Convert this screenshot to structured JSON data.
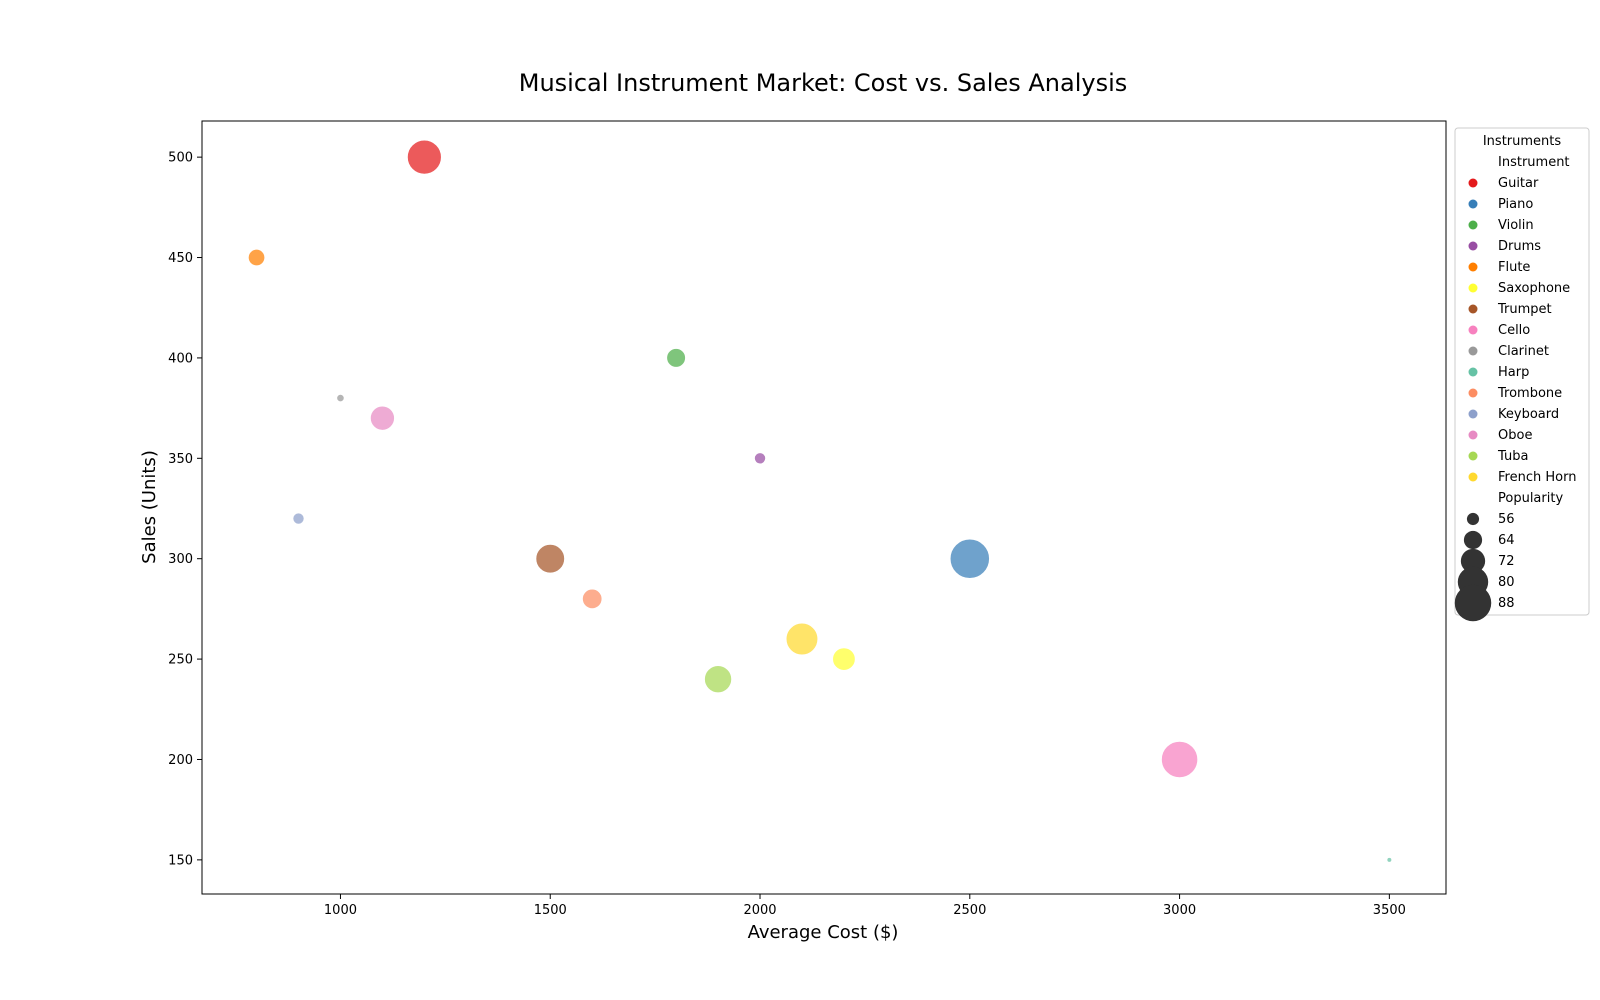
{
  "chart_data": {
    "type": "scatter",
    "title": "Musical Instrument Market: Cost vs. Sales Analysis",
    "xlabel": "Average Cost ($)",
    "ylabel": "Sales (Units)",
    "xlim": [
      670,
      3635
    ],
    "ylim": [
      133,
      518
    ],
    "xticks": [
      1000,
      1500,
      2000,
      2500,
      3000,
      3500
    ],
    "yticks": [
      150,
      200,
      250,
      300,
      350,
      400,
      450,
      500
    ],
    "grid": false,
    "legend": {
      "title": "Instruments",
      "placement": "outside-right",
      "hue_title": "Instrument",
      "size_title": "Popularity",
      "size_entries": [
        56,
        64,
        72,
        80,
        88
      ]
    },
    "series": [
      {
        "name": "Guitar",
        "color": "#e41a1c",
        "x": 1200,
        "y": 500,
        "size": 85
      },
      {
        "name": "Piano",
        "color": "#377eb8",
        "x": 2500,
        "y": 300,
        "size": 92
      },
      {
        "name": "Violin",
        "color": "#4daf4a",
        "x": 1800,
        "y": 400,
        "size": 65
      },
      {
        "name": "Drums",
        "color": "#984ea3",
        "x": 2000,
        "y": 350,
        "size": 55
      },
      {
        "name": "Flute",
        "color": "#ff7f00",
        "x": 800,
        "y": 450,
        "size": 62
      },
      {
        "name": "Saxophone",
        "color": "#ffff33",
        "x": 2200,
        "y": 250,
        "size": 70
      },
      {
        "name": "Trumpet",
        "color": "#a65628",
        "x": 1500,
        "y": 300,
        "size": 78
      },
      {
        "name": "Cello",
        "color": "#f781bf",
        "x": 3000,
        "y": 200,
        "size": 88
      },
      {
        "name": "Clarinet",
        "color": "#999999",
        "x": 1000,
        "y": 380,
        "size": 50
      },
      {
        "name": "Harp",
        "color": "#66c2a5",
        "x": 3500,
        "y": 150,
        "size": 40
      },
      {
        "name": "Trombone",
        "color": "#fc8d62",
        "x": 1600,
        "y": 280,
        "size": 66
      },
      {
        "name": "Keyboard",
        "color": "#8da0cb",
        "x": 900,
        "y": 320,
        "size": 55
      },
      {
        "name": "Oboe",
        "color": "#e78ac3",
        "x": 1100,
        "y": 370,
        "size": 72
      },
      {
        "name": "Tuba",
        "color": "#a6d854",
        "x": 1900,
        "y": 240,
        "size": 76
      },
      {
        "name": "French Horn",
        "color": "#ffd92f",
        "x": 2100,
        "y": 260,
        "size": 82
      }
    ]
  }
}
